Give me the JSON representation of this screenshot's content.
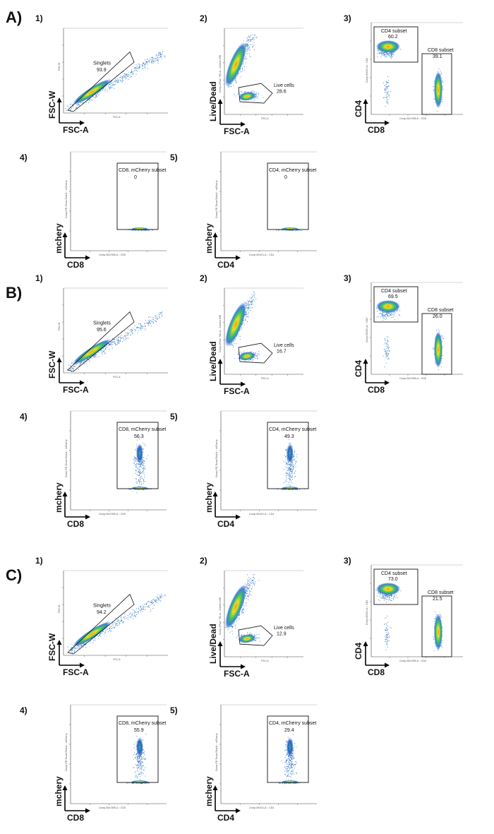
{
  "figure": {
    "panel_numbers": [
      "1)",
      "2)",
      "3)",
      "4)",
      "5)"
    ],
    "tiny_axis_text": {
      "singlets_x": "FSC-A",
      "singlets_y": "FSC-W",
      "live_x": "FSC-A",
      "live_y": "Comp-eFluor 780-A :: Zombie NIR",
      "subset_x": "Comp-BUV395-A :: CD8",
      "subset_y": "Comp-BV421-A :: CD4",
      "cd8_x": "Comp-BUV395-A :: CD8",
      "cd4_x": "Comp-BV421-A :: CD4",
      "mcherry_y": "Comp-PE-Texas Red-A :: mCherry"
    }
  },
  "chart_data": [
    {
      "section": "A)",
      "panel": "1)",
      "type": "scatter",
      "xlabel": "FSC-A",
      "ylabel": "FSC-W",
      "gate": "Singlets",
      "value": "93.9"
    },
    {
      "section": "A)",
      "panel": "2)",
      "type": "scatter",
      "xlabel": "FSC-A",
      "ylabel": "Live/Dead",
      "gate": "Live cells",
      "value": "28.6"
    },
    {
      "section": "A)",
      "panel": "3)",
      "type": "scatter",
      "xlabel": "CD8",
      "ylabel": "CD4",
      "gates": [
        {
          "label": "CD4 subset",
          "value": "60.2"
        },
        {
          "label": "CD8 subset",
          "value": "39.1"
        }
      ]
    },
    {
      "section": "A)",
      "panel": "4)",
      "type": "scatter",
      "xlabel": "CD8",
      "ylabel": "mchery",
      "gate": "CD8, mCherry subset",
      "value": "0"
    },
    {
      "section": "A)",
      "panel": "5)",
      "type": "scatter",
      "xlabel": "CD4",
      "ylabel": "mchery",
      "gate": "CD4, mCherry subset",
      "value": "0"
    },
    {
      "section": "B)",
      "panel": "1)",
      "type": "scatter",
      "xlabel": "FSC-A",
      "ylabel": "FSC-W",
      "gate": "Singlets",
      "value": "95.6"
    },
    {
      "section": "B)",
      "panel": "2)",
      "type": "scatter",
      "xlabel": "FSC-A",
      "ylabel": "Live/Dead",
      "gate": "Live cells",
      "value": "16.7"
    },
    {
      "section": "B)",
      "panel": "3)",
      "type": "scatter",
      "xlabel": "CD8",
      "ylabel": "CD4",
      "gates": [
        {
          "label": "CD4 subset",
          "value": "69.5"
        },
        {
          "label": "CD8 subset",
          "value": "26.0"
        }
      ]
    },
    {
      "section": "B)",
      "panel": "4)",
      "type": "scatter",
      "xlabel": "CD8",
      "ylabel": "mchery",
      "gate": "CD8, mCherry subset",
      "value": "56.3"
    },
    {
      "section": "B)",
      "panel": "5)",
      "type": "scatter",
      "xlabel": "CD4",
      "ylabel": "mchery",
      "gate": "CD4, mCherry subset",
      "value": "49.3"
    },
    {
      "section": "C)",
      "panel": "1)",
      "type": "scatter",
      "xlabel": "FSC-A",
      "ylabel": "FSC-W",
      "gate": "Singlets",
      "value": "94.2"
    },
    {
      "section": "C)",
      "panel": "2)",
      "type": "scatter",
      "xlabel": "FSC-A",
      "ylabel": "Live/Dead",
      "gate": "Live cells",
      "value": "12.9"
    },
    {
      "section": "C)",
      "panel": "3)",
      "type": "scatter",
      "xlabel": "CD8",
      "ylabel": "CD4",
      "gates": [
        {
          "label": "CD4 subset",
          "value": "73.0"
        },
        {
          "label": "CD8 subset",
          "value": "21.5"
        }
      ]
    },
    {
      "section": "C)",
      "panel": "4)",
      "type": "scatter",
      "xlabel": "CD8",
      "ylabel": "mchery",
      "gate": "CD8, mCherry subset",
      "value": "55.9"
    },
    {
      "section": "C)",
      "panel": "5)",
      "type": "scatter",
      "xlabel": "CD4",
      "ylabel": "mchery",
      "gate": "CD4, mCherry subset",
      "value": "29.4"
    }
  ]
}
